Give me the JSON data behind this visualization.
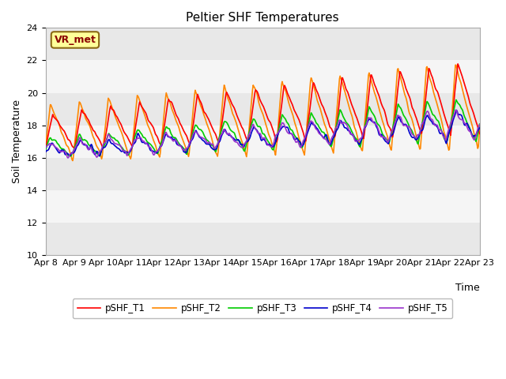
{
  "title": "Peltier SHF Temperatures",
  "ylabel": "Soil Temperature",
  "xlabel": "Time",
  "annotation_text": "VR_met",
  "ylim": [
    10,
    24
  ],
  "yticks": [
    10,
    12,
    14,
    16,
    18,
    20,
    22,
    24
  ],
  "x_tick_labels": [
    "Apr 8",
    "Apr 9",
    "Apr 10",
    "Apr 11",
    "Apr 12",
    "Apr 13",
    "Apr 14",
    "Apr 15",
    "Apr 16",
    "Apr 17",
    "Apr 18",
    "Apr 19",
    "Apr 20",
    "Apr 21",
    "Apr 22",
    "Apr 23"
  ],
  "series_colors": [
    "#ff0000",
    "#ff8800",
    "#00cc00",
    "#0000cc",
    "#9933cc"
  ],
  "series_labels": [
    "pSHF_T1",
    "pSHF_T2",
    "pSHF_T3",
    "pSHF_T4",
    "pSHF_T5"
  ],
  "linewidth": 1.2,
  "plot_bg_color": "#ffffff",
  "fig_bg_color": "#ffffff",
  "band_colors": [
    "#e8e8e8",
    "#f5f5f5"
  ],
  "grid_color": "#cccccc",
  "n_days": 15,
  "n_points_per_day": 48
}
